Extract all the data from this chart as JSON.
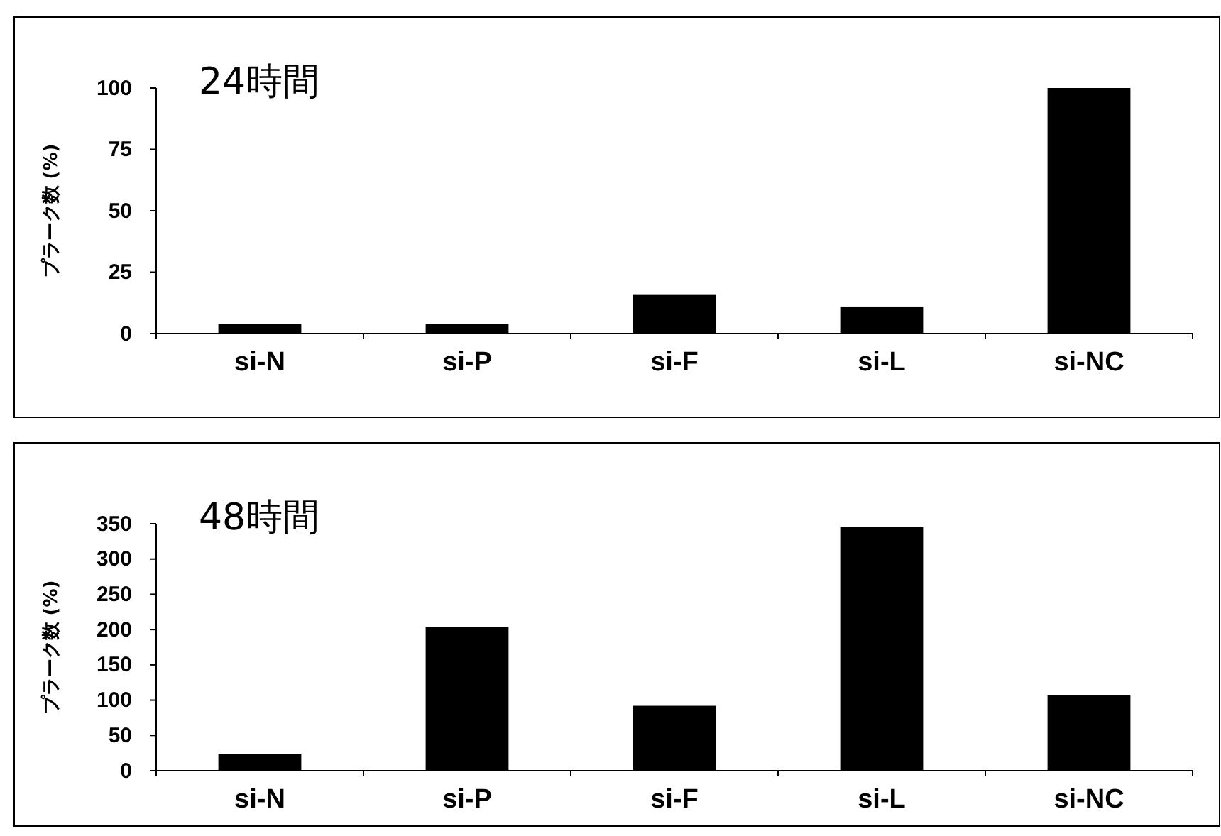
{
  "chart_data": [
    {
      "type": "bar",
      "title": "24時間",
      "ylabel": "プラーク数 (%)",
      "categories": [
        "si-N",
        "si-P",
        "si-F",
        "si-L",
        "si-NC"
      ],
      "values": [
        4,
        4,
        16,
        11,
        100
      ],
      "color": "#000000",
      "ylim": [
        0,
        100
      ],
      "yticks": [
        0,
        25,
        50,
        75,
        100
      ]
    },
    {
      "type": "bar",
      "title": "48時間",
      "ylabel": "プラーク数 (%)",
      "categories": [
        "si-N",
        "si-P",
        "si-F",
        "si-L",
        "si-NC"
      ],
      "values": [
        24,
        204,
        92,
        345,
        107
      ],
      "color": "#000000",
      "ylim": [
        0,
        350
      ],
      "yticks": [
        0,
        50,
        100,
        150,
        200,
        250,
        300,
        350
      ]
    }
  ]
}
